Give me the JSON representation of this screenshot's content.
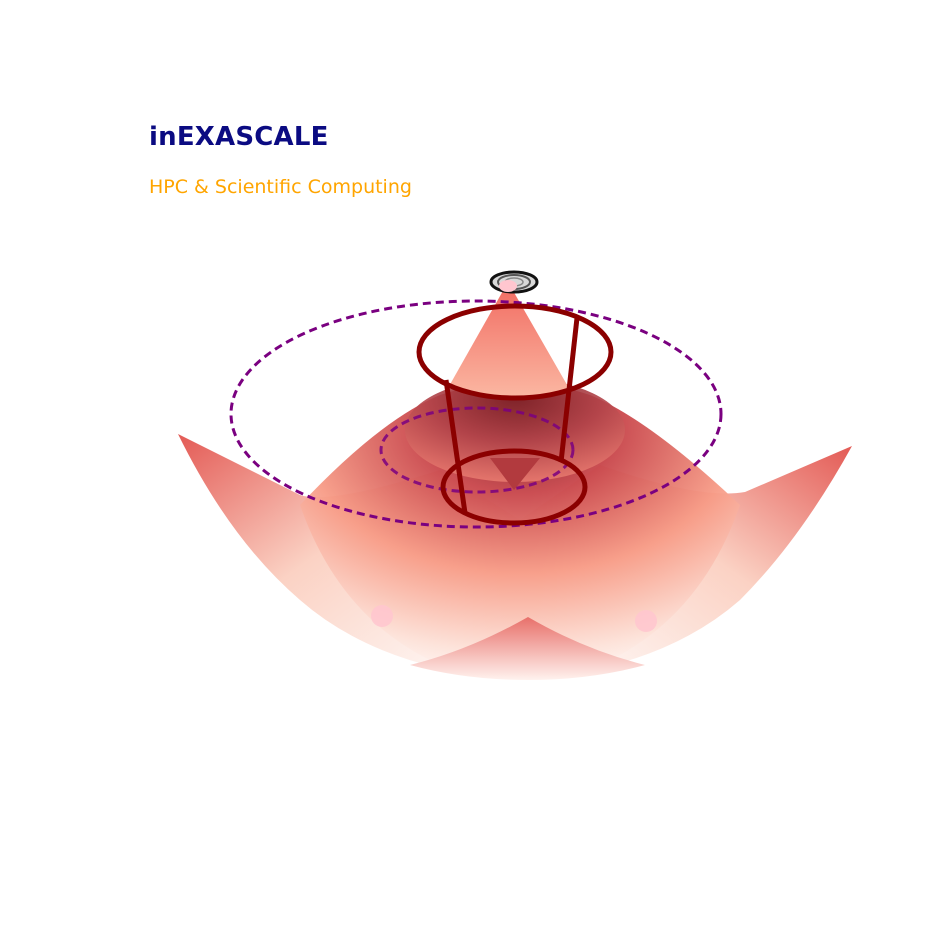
{
  "header": {
    "title": "inEXASCALE",
    "subtitle": "HPC & Scientific Computing"
  },
  "colors": {
    "title": "#0b0b82",
    "subtitle": "#ffa500",
    "surface_dark": "#8b1e1e",
    "surface_light": "#fff6f2",
    "rings": "#8b0000",
    "orbit": "#7a0080"
  },
  "graphic": {
    "description_icon": "mexican-hat-surface-logo"
  }
}
